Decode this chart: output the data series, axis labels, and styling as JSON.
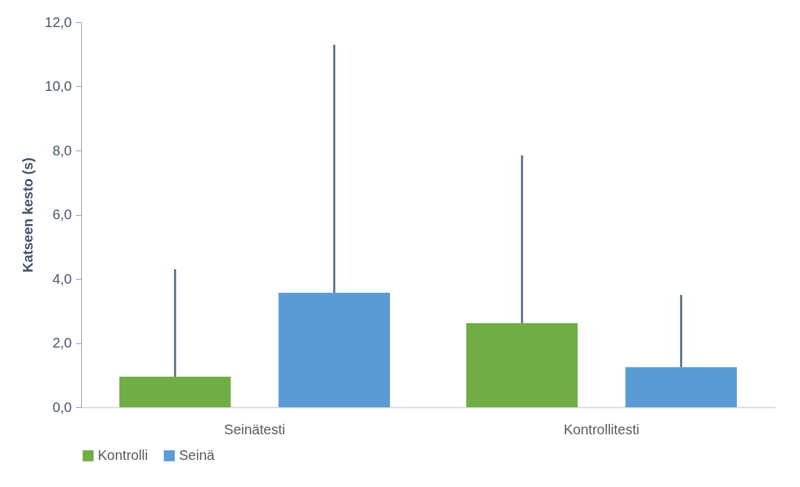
{
  "chart_data": {
    "type": "bar",
    "ylabel": "Katseen kesto (s)",
    "categories": [
      "Seinätesti",
      "Kontrollitesti"
    ],
    "series": [
      {
        "name": "Kontrolli",
        "color": "#70ad47",
        "values": [
          0.95,
          2.62
        ],
        "errors": [
          [
            0.95,
            4.3
          ],
          [
            2.62,
            7.85
          ]
        ]
      },
      {
        "name": "Seinä",
        "color": "#5b9bd5",
        "values": [
          3.57,
          1.25
        ],
        "errors": [
          [
            3.57,
            11.3
          ],
          [
            1.25,
            3.5
          ]
        ]
      }
    ],
    "ylim": [
      0,
      12
    ],
    "yticks": [
      {
        "value": 0,
        "label": "0,0"
      },
      {
        "value": 2,
        "label": "2,0"
      },
      {
        "value": 4,
        "label": "4,0"
      },
      {
        "value": 6,
        "label": "6,0"
      },
      {
        "value": 8,
        "label": "8,0"
      },
      {
        "value": 10,
        "label": "10,0"
      },
      {
        "value": 12,
        "label": "12,0"
      }
    ],
    "grid": false,
    "legend": "bottom"
  }
}
